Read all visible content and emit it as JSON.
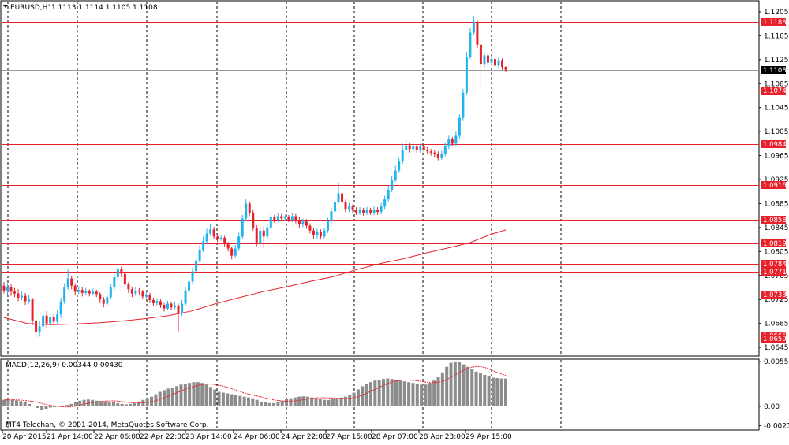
{
  "header": {
    "symbol_tf": "EURUSD,H1",
    "ohlc": "1.1113 1.1114 1.1105 1.1108"
  },
  "price_axis": {
    "ylim": [
      1.0632,
      1.1222
    ],
    "ticks": [
      "1.1205",
      "1.1165",
      "1.1125",
      "1.1085",
      "1.1045",
      "1.1005",
      "1.0965",
      "1.0925",
      "1.0885",
      "1.0845",
      "1.0805",
      "1.0765",
      "1.0725",
      "1.0685",
      "1.0645"
    ]
  },
  "current_price": "1.1108",
  "levels": [
    "1.1188",
    "1.1074",
    "1.0984",
    "1.0916",
    "1.0858",
    "1.0819",
    "1.0784",
    "1.0771",
    "1.0733",
    "1.0665",
    "1.0659"
  ],
  "indicator": {
    "label": "MACD(12,26,9) 0.00344 0.00430",
    "ticks": [
      "0.00554",
      "0.00",
      "-0.00238"
    ],
    "ylim": [
      -0.00283,
      0.00575
    ]
  },
  "copyright": "MT4 Telechan, © 2001-2014, MetaQuotes Software Corp.",
  "time_axis": {
    "labels": [
      "20 Apr 2015",
      "21 Apr 14:00",
      "22 Apr 06:00",
      "22 Apr 22:00",
      "23 Apr 14:00",
      "24 Apr 06:00",
      "24 Apr 22:00",
      "27 Apr 15:00",
      "28 Apr 07:00",
      "28 Apr 23:00",
      "29 Apr 15:00"
    ]
  },
  "colors": {
    "bull": "#1fb4ee",
    "bear": "#e8202a",
    "level": "#e8202a",
    "ma": "#e8202a",
    "grid": "#000000",
    "hist": "#8c8c8c",
    "signal": "#e8202a",
    "tag_bg": "#e8202a",
    "current_tag_bg": "#000000"
  },
  "chart_data": {
    "type": "candlestick",
    "title": "EURUSD,H1",
    "ylim": [
      1.0632,
      1.1222
    ],
    "moving_average": [
      [
        1.0695,
        0
      ],
      [
        1.0685,
        30
      ],
      [
        1.0683,
        60
      ],
      [
        1.0684,
        90
      ],
      [
        1.0686,
        120
      ],
      [
        1.0689,
        150
      ],
      [
        1.0693,
        180
      ],
      [
        1.0698,
        210
      ],
      [
        1.0706,
        240
      ],
      [
        1.0718,
        270
      ],
      [
        1.0728,
        300
      ],
      [
        1.0738,
        330
      ],
      [
        1.0746,
        360
      ],
      [
        1.0755,
        390
      ],
      [
        1.0763,
        420
      ],
      [
        1.0775,
        450
      ],
      [
        1.0785,
        480
      ],
      [
        1.0793,
        510
      ],
      [
        1.0803,
        540
      ],
      [
        1.0812,
        570
      ],
      [
        1.082,
        595
      ],
      [
        1.0833,
        620
      ],
      [
        1.0841,
        640
      ]
    ],
    "candles": [
      [
        1.0748,
        1.074,
        1.0754,
        1.0735
      ],
      [
        1.074,
        1.0745,
        1.0752,
        1.0733
      ],
      [
        1.0745,
        1.0738,
        1.075,
        1.0731
      ],
      [
        1.0738,
        1.0735,
        1.0744,
        1.0729
      ],
      [
        1.0735,
        1.0728,
        1.0742,
        1.0722
      ],
      [
        1.0728,
        1.0731,
        1.0738,
        1.0724
      ],
      [
        1.0731,
        1.0722,
        1.0736,
        1.0716
      ],
      [
        1.0722,
        1.0725,
        1.0732,
        1.0718
      ],
      [
        1.0725,
        1.069,
        1.0728,
        1.0682
      ],
      [
        1.069,
        1.067,
        1.0694,
        1.0661
      ],
      [
        1.067,
        1.068,
        1.0689,
        1.0663
      ],
      [
        1.068,
        1.0698,
        1.0703,
        1.0674
      ],
      [
        1.0698,
        1.0685,
        1.0706,
        1.0677
      ],
      [
        1.0685,
        1.0695,
        1.0702,
        1.068
      ],
      [
        1.0695,
        1.0688,
        1.07,
        1.0682
      ],
      [
        1.0688,
        1.07,
        1.0707,
        1.0683
      ],
      [
        1.07,
        1.0722,
        1.0728,
        1.0694
      ],
      [
        1.0722,
        1.0745,
        1.0752,
        1.0718
      ],
      [
        1.0745,
        1.076,
        1.0775,
        1.0741
      ],
      [
        1.076,
        1.0748,
        1.0764,
        1.0742
      ],
      [
        1.0748,
        1.0738,
        1.0752,
        1.0733
      ],
      [
        1.0738,
        1.0741,
        1.0747,
        1.0734
      ],
      [
        1.0741,
        1.0736,
        1.0746,
        1.073
      ],
      [
        1.0736,
        1.0739,
        1.0744,
        1.0733
      ],
      [
        1.0739,
        1.0735,
        1.0742,
        1.073
      ],
      [
        1.0735,
        1.0738,
        1.0743,
        1.0732
      ],
      [
        1.0738,
        1.0734,
        1.0741,
        1.0729
      ],
      [
        1.0734,
        1.0725,
        1.0737,
        1.0719
      ],
      [
        1.0725,
        1.0718,
        1.0729,
        1.0712
      ],
      [
        1.0718,
        1.0729,
        1.0734,
        1.0714
      ],
      [
        1.0729,
        1.0745,
        1.0751,
        1.0726
      ],
      [
        1.0745,
        1.0762,
        1.0769,
        1.0741
      ],
      [
        1.0762,
        1.0776,
        1.0785,
        1.0758
      ],
      [
        1.0776,
        1.0768,
        1.078,
        1.0762
      ],
      [
        1.0768,
        1.075,
        1.0772,
        1.0745
      ],
      [
        1.075,
        1.0742,
        1.0754,
        1.0736
      ],
      [
        1.0742,
        1.0735,
        1.0746,
        1.0729
      ],
      [
        1.0735,
        1.074,
        1.0746,
        1.0731
      ],
      [
        1.074,
        1.0738,
        1.0744,
        1.0733
      ],
      [
        1.0738,
        1.073,
        1.0741,
        1.0726
      ],
      [
        1.073,
        1.0733,
        1.0738,
        1.0727
      ],
      [
        1.0733,
        1.0724,
        1.0736,
        1.0719
      ],
      [
        1.0724,
        1.0719,
        1.0728,
        1.0714
      ],
      [
        1.0719,
        1.0722,
        1.0727,
        1.0715
      ],
      [
        1.0722,
        1.0716,
        1.0725,
        1.0711
      ],
      [
        1.0716,
        1.071,
        1.0719,
        1.0705
      ],
      [
        1.071,
        1.0718,
        1.0723,
        1.0707
      ],
      [
        1.0718,
        1.0712,
        1.0721,
        1.0707
      ],
      [
        1.0712,
        1.0715,
        1.072,
        1.0709
      ],
      [
        1.0715,
        1.0702,
        1.0718,
        1.0672
      ],
      [
        1.0702,
        1.0718,
        1.0724,
        1.0698
      ],
      [
        1.0718,
        1.074,
        1.0746,
        1.0715
      ],
      [
        1.074,
        1.0755,
        1.0762,
        1.0736
      ],
      [
        1.0755,
        1.0772,
        1.0779,
        1.0751
      ],
      [
        1.0772,
        1.079,
        1.0797,
        1.0768
      ],
      [
        1.079,
        1.0808,
        1.0815,
        1.0786
      ],
      [
        1.0808,
        1.0822,
        1.083,
        1.0804
      ],
      [
        1.0822,
        1.0835,
        1.0843,
        1.0818
      ],
      [
        1.0835,
        1.0842,
        1.0851,
        1.0831
      ],
      [
        1.0842,
        1.083,
        1.0846,
        1.0825
      ],
      [
        1.083,
        1.0826,
        1.0834,
        1.0821
      ],
      [
        1.0826,
        1.0828,
        1.0833,
        1.0823
      ],
      [
        1.0828,
        1.0818,
        1.0831,
        1.0813
      ],
      [
        1.0818,
        1.081,
        1.0821,
        1.0805
      ],
      [
        1.081,
        1.0798,
        1.0813,
        1.0792
      ],
      [
        1.0798,
        1.081,
        1.0816,
        1.0794
      ],
      [
        1.081,
        1.083,
        1.0836,
        1.0806
      ],
      [
        1.083,
        1.086,
        1.0866,
        1.0826
      ],
      [
        1.086,
        1.0885,
        1.0892,
        1.0856
      ],
      [
        1.0885,
        1.087,
        1.0889,
        1.0864
      ],
      [
        1.087,
        1.0845,
        1.0874,
        1.084
      ],
      [
        1.0845,
        1.082,
        1.0849,
        1.0814
      ],
      [
        1.082,
        1.084,
        1.0846,
        1.0815
      ],
      [
        1.084,
        1.083,
        1.0846,
        1.081
      ],
      [
        1.083,
        1.0845,
        1.085,
        1.0826
      ],
      [
        1.0845,
        1.0862,
        1.0867,
        1.0841
      ],
      [
        1.0862,
        1.0858,
        1.0866,
        1.0853
      ],
      [
        1.0858,
        1.0864,
        1.0869,
        1.0854
      ],
      [
        1.0864,
        1.086,
        1.0868,
        1.0856
      ],
      [
        1.086,
        1.0862,
        1.0866,
        1.0856
      ],
      [
        1.0862,
        1.0858,
        1.0866,
        1.0854
      ],
      [
        1.0858,
        1.0864,
        1.0869,
        1.0854
      ],
      [
        1.0864,
        1.0858,
        1.0868,
        1.0852
      ],
      [
        1.0858,
        1.085,
        1.0862,
        1.0845
      ],
      [
        1.085,
        1.0855,
        1.086,
        1.0846
      ],
      [
        1.0855,
        1.0848,
        1.0859,
        1.0843
      ],
      [
        1.0848,
        1.084,
        1.0852,
        1.0835
      ],
      [
        1.084,
        1.0832,
        1.0844,
        1.0826
      ],
      [
        1.0832,
        1.0838,
        1.0843,
        1.0827
      ],
      [
        1.0838,
        1.083,
        1.0842,
        1.0825
      ],
      [
        1.083,
        1.084,
        1.0845,
        1.0826
      ],
      [
        1.084,
        1.0856,
        1.0861,
        1.0836
      ],
      [
        1.0856,
        1.0872,
        1.0878,
        1.0852
      ],
      [
        1.0872,
        1.0888,
        1.0895,
        1.0868
      ],
      [
        1.0888,
        1.0902,
        1.092,
        1.0885
      ],
      [
        1.0902,
        1.0888,
        1.0906,
        1.0883
      ],
      [
        1.0888,
        1.0876,
        1.0892,
        1.087
      ],
      [
        1.0876,
        1.088,
        1.0886,
        1.0871
      ],
      [
        1.088,
        1.0875,
        1.0884,
        1.0869
      ],
      [
        1.0875,
        1.087,
        1.0879,
        1.0866
      ],
      [
        1.087,
        1.0874,
        1.0879,
        1.0866
      ],
      [
        1.0874,
        1.087,
        1.0878,
        1.0865
      ],
      [
        1.087,
        1.0874,
        1.0879,
        1.0866
      ],
      [
        1.0874,
        1.087,
        1.0878,
        1.0866
      ],
      [
        1.087,
        1.0875,
        1.088,
        1.0866
      ],
      [
        1.0875,
        1.0871,
        1.0879,
        1.0866
      ],
      [
        1.0871,
        1.088,
        1.0886,
        1.0867
      ],
      [
        1.088,
        1.0892,
        1.0898,
        1.0876
      ],
      [
        1.0892,
        1.0908,
        1.0915,
        1.0888
      ],
      [
        1.0908,
        1.0925,
        1.0932,
        1.0904
      ],
      [
        1.0925,
        1.094,
        1.0948,
        1.0921
      ],
      [
        1.094,
        1.0955,
        1.0962,
        1.0936
      ],
      [
        1.0955,
        1.0975,
        1.0985,
        1.0951
      ],
      [
        1.0975,
        1.0982,
        1.0991,
        1.0968
      ],
      [
        1.0982,
        1.0976,
        1.0987,
        1.097
      ],
      [
        1.0976,
        1.098,
        1.0986,
        1.0971
      ],
      [
        1.098,
        1.0975,
        1.0984,
        1.097
      ],
      [
        1.0975,
        1.098,
        1.0985,
        1.097
      ],
      [
        1.098,
        1.0975,
        1.0984,
        1.097
      ],
      [
        1.0975,
        1.0972,
        1.0979,
        1.0967
      ],
      [
        1.0972,
        1.097,
        1.0976,
        1.0965
      ],
      [
        1.097,
        1.0968,
        1.0974,
        1.0963
      ],
      [
        1.0968,
        1.0962,
        1.0972,
        1.0957
      ],
      [
        1.0962,
        1.0968,
        1.0973,
        1.0958
      ],
      [
        1.0968,
        1.098,
        1.0986,
        1.0964
      ],
      [
        1.098,
        1.0992,
        1.0998,
        1.0976
      ],
      [
        1.0992,
        1.0985,
        1.0996,
        1.098
      ],
      [
        1.0985,
        1.0998,
        1.1006,
        1.0981
      ],
      [
        1.0998,
        1.1028,
        1.1034,
        1.0994
      ],
      [
        1.1028,
        1.107,
        1.1076,
        1.1024
      ],
      [
        1.107,
        1.113,
        1.1138,
        1.1066
      ],
      [
        1.113,
        1.117,
        1.1178,
        1.1126
      ],
      [
        1.117,
        1.1188,
        1.1198,
        1.1166
      ],
      [
        1.1188,
        1.115,
        1.1192,
        1.1144
      ],
      [
        1.115,
        1.1118,
        1.1155,
        1.1074
      ],
      [
        1.1118,
        1.1132,
        1.1137,
        1.1112
      ],
      [
        1.1132,
        1.112,
        1.1136,
        1.1114
      ],
      [
        1.112,
        1.1126,
        1.1131,
        1.1115
      ],
      [
        1.1126,
        1.1115,
        1.1129,
        1.111
      ],
      [
        1.1115,
        1.1124,
        1.1129,
        1.1111
      ],
      [
        1.1124,
        1.1113,
        1.1127,
        1.1108
      ],
      [
        1.1113,
        1.1108,
        1.1114,
        1.1105
      ]
    ],
    "macd_histogram": [
      0.0008,
      0.00082,
      0.0008,
      0.00075,
      0.00065,
      0.0005,
      0.0003,
      0.0001,
      -0.0002,
      -0.0004,
      -0.0003,
      -0.00015,
      0.0,
      5e-05,
      0.0001,
      0.00018,
      0.0003,
      0.0005,
      0.0007,
      0.0008,
      0.00085,
      0.0008,
      0.0007,
      0.00065,
      0.0006,
      0.00055,
      0.0005,
      0.0004,
      0.0003,
      0.00025,
      0.0003,
      0.0004,
      0.0006,
      0.0008,
      0.001,
      0.0012,
      0.0015,
      0.0018,
      0.002,
      0.0022,
      0.0023,
      0.0025,
      0.0027,
      0.0028,
      0.0029,
      0.003,
      0.003,
      0.0029,
      0.0027,
      0.0024,
      0.0021,
      0.0018,
      0.0017,
      0.0016,
      0.0015,
      0.0014,
      0.0013,
      0.0012,
      0.0011,
      0.001,
      0.0008,
      0.0006,
      0.0005,
      0.0004,
      0.0004,
      0.0005,
      0.0007,
      0.0009,
      0.001,
      0.0011,
      0.0012,
      0.00125,
      0.0012,
      0.0011,
      0.001,
      0.0009,
      0.0008,
      0.0008,
      0.0009,
      0.001,
      0.0011,
      0.0012,
      0.0014,
      0.0017,
      0.0021,
      0.0025,
      0.0028,
      0.003,
      0.0032,
      0.0033,
      0.0034,
      0.00345,
      0.0034,
      0.0033,
      0.0032,
      0.0031,
      0.003,
      0.0029,
      0.0028,
      0.0027,
      0.0027,
      0.0029,
      0.0032,
      0.0036,
      0.0042,
      0.0049,
      0.0054,
      0.00554,
      0.00545,
      0.0052,
      0.0049,
      0.0046,
      0.0043,
      0.0041,
      0.0039,
      0.0037,
      0.00355,
      0.0035,
      0.00345,
      0.00344
    ]
  }
}
